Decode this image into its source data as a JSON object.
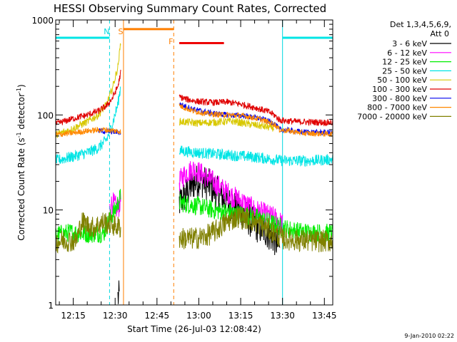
{
  "chart_data": {
    "type": "line",
    "title": "HESSI Observing Summary Count Rates, Corrected",
    "xlabel": "Start Time (26-Jul-03 12:08:42)",
    "ylabel": "Corrected Count Rate (s",
    "ylabel_sup1": "-1",
    "ylabel_mid": " detector",
    "ylabel_sup2": "-1",
    "ylabel_end": ")",
    "y_scale": "log",
    "ylim": [
      1,
      1000
    ],
    "xlim": [
      "12:08:42",
      "13:48:00"
    ],
    "x_tick_labels": [
      "12:15",
      "12:30",
      "12:45",
      "13:00",
      "13:15",
      "13:30",
      "13:45"
    ],
    "y_tick_labels": [
      "1",
      "10",
      "100",
      "1000"
    ],
    "timestamp": "9-Jan-2010 02:22",
    "legend": {
      "header1": "Det 1,3,4,5,6,9,",
      "header2": "Att 0",
      "entries": [
        {
          "label": "3 - 6 keV",
          "color": "#000000"
        },
        {
          "label": "6 - 12 keV",
          "color": "#ff00ff"
        },
        {
          "label": "12 - 25 keV",
          "color": "#00ee00"
        },
        {
          "label": "25 - 50 keV",
          "color": "#00e5e5"
        },
        {
          "label": "50 - 100 keV",
          "color": "#d8c800"
        },
        {
          "label": "100 - 300 keV",
          "color": "#e00000"
        },
        {
          "label": "300 - 800 keV",
          "color": "#0000ee"
        },
        {
          "label": "800 - 7000 keV",
          "color": "#ff8800"
        },
        {
          "label": "7000 - 20000 keV",
          "color": "#808000"
        }
      ]
    },
    "flags": [
      {
        "label": "N",
        "color": "#00d8e0",
        "time": "12:28:00"
      },
      {
        "label": "S",
        "color": "#ff7f00",
        "time": "12:33:00"
      },
      {
        "label": "F",
        "color": "#ff7f00",
        "time": "12:51:00"
      }
    ],
    "bars": [
      {
        "name": "night-left",
        "color": "#00e5e5",
        "from": "12:08:42",
        "to": "12:28:00",
        "y": 650
      },
      {
        "name": "saa",
        "color": "#ff7f00",
        "from": "12:33:00",
        "to": "12:51:00",
        "y": 800
      },
      {
        "name": "flare",
        "color": "#ee0000",
        "from": "12:53:00",
        "to": "13:09:00",
        "y": 570
      },
      {
        "name": "night-right",
        "color": "#00e5e5",
        "from": "13:30:00",
        "to": "13:48:00",
        "y": 650
      }
    ],
    "vlines": [
      {
        "time": "12:28:00",
        "color": "#00d8e0",
        "style": "dashed"
      },
      {
        "time": "12:33:00",
        "color": "#ff7f00",
        "style": "solid"
      },
      {
        "time": "12:51:00",
        "color": "#ff7f00",
        "style": "dashed"
      },
      {
        "time": "13:30:00",
        "color": "#00d8e0",
        "style": "solid"
      },
      {
        "time": "13:48:00",
        "color": "#00d8e0",
        "style": "dashed"
      }
    ],
    "series": [
      {
        "name": "3 - 6 keV",
        "color": "#000000",
        "noise": 0.18,
        "segments": [
          {
            "x": [
              "12:31:00",
              "12:31:30"
            ],
            "y": [
              1.2,
              1.2
            ]
          },
          {
            "x": [
              "12:53:00",
              "12:55:00",
              "12:58:00",
              "13:00:00",
              "13:04:00",
              "13:08:00",
              "13:12:00",
              "13:16:00",
              "13:20:00",
              "13:24:00",
              "13:27:00",
              "13:29:00"
            ],
            "y": [
              12,
              14,
              19,
              21,
              18,
              14,
              11,
              9,
              7,
              6,
              5,
              4
            ]
          }
        ]
      },
      {
        "name": "6 - 12 keV",
        "color": "#ff00ff",
        "noise": 0.12,
        "segments": [
          {
            "x": [
              "12:28:00",
              "12:29:00",
              "12:30:00",
              "12:31:00",
              "12:32:00"
            ],
            "y": [
              10,
              12,
              11,
              10,
              13
            ]
          },
          {
            "x": [
              "12:53:00",
              "12:55:00",
              "12:58:00",
              "13:00:00",
              "13:04:00",
              "13:08:00",
              "13:12:00",
              "13:16:00",
              "13:20:00",
              "13:24:00",
              "13:28:00",
              "13:30:00"
            ],
            "y": [
              20,
              24,
              27,
              25,
              21,
              17,
              14,
              12,
              10,
              9,
              8,
              7
            ]
          }
        ]
      },
      {
        "name": "12 - 25 keV",
        "color": "#00ee00",
        "noise": 0.1,
        "segments": [
          {
            "x": [
              "12:08:42",
              "12:14:00",
              "12:20:00",
              "12:26:00",
              "12:28:00",
              "12:30:00",
              "12:32:00"
            ],
            "y": [
              5.5,
              5.8,
              5.6,
              5.7,
              8,
              10,
              14
            ]
          },
          {
            "x": [
              "12:53:00",
              "12:56:00",
              "13:00:00",
              "13:05:00",
              "13:10:00",
              "13:15:00",
              "13:20:00",
              "13:25:00",
              "13:30:00",
              "13:35:00",
              "13:40:00",
              "13:48:00"
            ],
            "y": [
              12,
              11.5,
              11,
              10,
              9.5,
              9,
              8.5,
              7.5,
              6.5,
              6,
              5.8,
              5.7
            ]
          }
        ]
      },
      {
        "name": "25 - 50 keV",
        "color": "#00e5e5",
        "noise": 0.06,
        "segments": [
          {
            "x": [
              "12:08:42",
              "12:14:00",
              "12:20:00",
              "12:24:00",
              "12:27:00",
              "12:29:00",
              "12:31:00",
              "12:32:00"
            ],
            "y": [
              33,
              36,
              40,
              45,
              55,
              80,
              130,
              200
            ]
          },
          {
            "x": [
              "12:53:00",
              "13:00:00",
              "13:10:00",
              "13:20:00",
              "13:30:00",
              "13:40:00",
              "13:48:00"
            ],
            "y": [
              42,
              40,
              38,
              36,
              33,
              33,
              34
            ]
          }
        ]
      },
      {
        "name": "50 - 100 keV",
        "color": "#d8c800",
        "noise": 0.04,
        "segments": [
          {
            "x": [
              "12:08:42",
              "12:14:00",
              "12:20:00",
              "12:24:00",
              "12:27:00",
              "12:29:00",
              "12:31:00",
              "12:32:00"
            ],
            "y": [
              62,
              70,
              85,
              100,
              130,
              190,
              320,
              580
            ]
          },
          {
            "x": [
              "12:53:00",
              "13:00:00",
              "13:06:00",
              "13:12:00",
              "13:18:00",
              "13:24:00",
              "13:27:00"
            ],
            "y": [
              85,
              82,
              84,
              86,
              80,
              75,
              73
            ]
          }
        ]
      },
      {
        "name": "100 - 300 keV",
        "color": "#e00000",
        "noise": 0.035,
        "segments": [
          {
            "x": [
              "12:08:42",
              "12:14:00",
              "12:20:00",
              "12:24:00",
              "12:27:00",
              "12:29:00",
              "12:31:00",
              "12:32:00"
            ],
            "y": [
              80,
              90,
              100,
              110,
              125,
              150,
              200,
              280
            ]
          },
          {
            "x": [
              "12:53:00",
              "12:56:00",
              "13:00:00",
              "13:05:00",
              "13:10:00",
              "13:15:00",
              "13:20:00",
              "13:25:00",
              "13:27:00",
              "13:29:00",
              "13:35:00",
              "13:48:00"
            ],
            "y": [
              155,
              145,
              138,
              135,
              137,
              130,
              120,
              108,
              100,
              88,
              85,
              83
            ]
          }
        ]
      },
      {
        "name": "300 - 800 keV",
        "color": "#0000ee",
        "noise": 0.03,
        "segments": [
          {
            "x": [
              "12:24:00",
              "12:28:00",
              "12:31:00",
              "12:32:00"
            ],
            "y": [
              68,
              67,
              66,
              65
            ]
          },
          {
            "x": [
              "12:53:00",
              "12:58:00",
              "13:04:00",
              "13:10:00",
              "13:16:00",
              "13:22:00",
              "13:27:00",
              "13:29:00",
              "13:38:00",
              "13:48:00"
            ],
            "y": [
              130,
              115,
              105,
              100,
              98,
              92,
              82,
              70,
              66,
              65
            ]
          }
        ]
      },
      {
        "name": "800 - 7000 keV",
        "color": "#ff8800",
        "noise": 0.03,
        "segments": [
          {
            "x": [
              "12:08:42",
              "12:14:00",
              "12:20:00",
              "12:26:00",
              "12:30:00",
              "12:32:00"
            ],
            "y": [
              62,
              64,
              68,
              70,
              68,
              67
            ]
          },
          {
            "x": [
              "12:53:00",
              "12:58:00",
              "13:04:00",
              "13:10:00",
              "13:16:00",
              "13:22:00",
              "13:27:00",
              "13:29:00",
              "13:38:00",
              "13:48:00"
            ],
            "y": [
              125,
              110,
              102,
              100,
              98,
              90,
              80,
              70,
              64,
              63
            ]
          }
        ]
      },
      {
        "name": "7000 - 20000 keV",
        "color": "#808000",
        "noise": 0.12,
        "segments": [
          {
            "x": [
              "12:08:42",
              "12:12:00",
              "12:16:00",
              "12:18:00",
              "12:22:00",
              "12:26:00",
              "12:29:00",
              "12:32:00"
            ],
            "y": [
              4.6,
              4.8,
              4.7,
              7.5,
              6.5,
              7.5,
              7,
              6.5
            ]
          },
          {
            "x": [
              "12:53:00",
              "12:58:00",
              "13:02:00",
              "13:06:00",
              "13:10:00",
              "13:14:00",
              "13:18:00",
              "13:22:00",
              "13:26:00",
              "13:30:00",
              "13:36:00",
              "13:42:00",
              "13:48:00"
            ],
            "y": [
              5,
              5,
              5.2,
              6,
              7.5,
              8.5,
              8,
              7,
              6,
              5,
              4.8,
              4.7,
              4.7
            ]
          }
        ]
      }
    ]
  }
}
